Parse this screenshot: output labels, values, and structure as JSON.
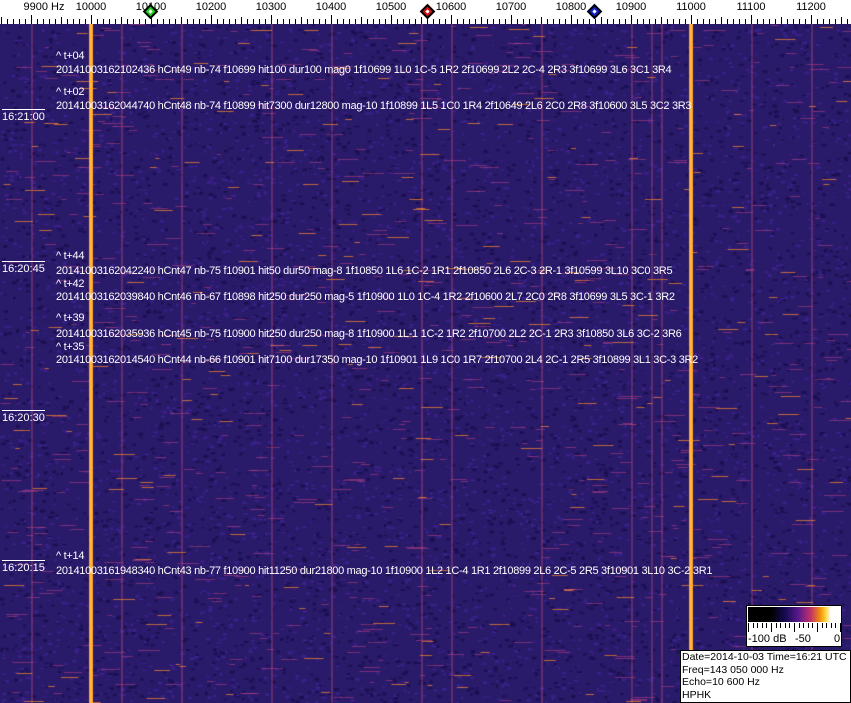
{
  "frequency_axis": {
    "unit_label": "9900 Hz",
    "labels": [
      "10000",
      "10100",
      "10200",
      "10300",
      "10400",
      "10500",
      "10600",
      "10700",
      "10800",
      "10900",
      "11000",
      "11100",
      "11200"
    ],
    "markers": [
      {
        "name": "green-marker",
        "color": "#22cc22",
        "freq_hz": 10100
      },
      {
        "name": "red-marker",
        "color": "#cc1111",
        "freq_hz": 10562
      },
      {
        "name": "blue-marker",
        "color": "#1122cc",
        "freq_hz": 10840
      }
    ]
  },
  "strong_carriers_hz": [
    10000,
    11000
  ],
  "time_labels": [
    "16:21:00",
    "16:20:45",
    "16:20:30",
    "16:20:15"
  ],
  "offsets": [
    "^ t+04",
    "^ t+02",
    "^ t+44",
    "^ t+42",
    "^ t+39",
    "^ t+35",
    "^ t+14"
  ],
  "detections": [
    "20141003162102436 hCnt49 nb-74 f10699 hit100 dur100 mag0 1f10699 1L0 1C-5 1R2 2f10699 2L2 2C-4 2R3 3f10699 3L6 3C1 3R4",
    "20141003162044740 hCnt48 nb-74 f10899 hit7300 dur12800 mag-10 1f10899 1L5 1C0 1R4 2f10649 2L6 2C0 2R8 3f10600 3L5 3C2 3R3",
    "20141003162042240 hCnt47 nb-75 f10901 hit50 dur50 mag-8 1f10850 1L6 1C-2 1R1 2f10850 2L6 2C-3 2R-1 3f10599 3L10 3C0 3R5",
    "20141003162039840 hCnt46 nb-67 f10898 hit250 dur250 mag-5 1f10900 1L0 1C-4 1R2 2f10600 2L7 2C0 2R8 3f10699 3L5 3C-1 3R2",
    "20141003162035936 hCnt45 nb-75 f10900 hit250 dur250 mag-8 1f10900 1L-1 1C-2 1R2 2f10700 2L2 2C-1 2R3 3f10850 3L6 3C-2 3R6",
    "20141003162014540 hCnt44 nb-66 f10901 hit7100 dur17350 mag-10 1f10901 1L9 1C0 1R7 2f10700 2L4 2C-1 2R5 3f10899 3L1 3C-3 3R2",
    "20141003161948340 hCnt43 nb-77 f10900 hit11250 dur21800 mag-10 1f10900 1L2 1C-4 1R1 2f10899 2L6 2C-5 2R5 3f10901 3L10 3C-2 3R1"
  ],
  "colorbar": {
    "labels": [
      "-100 dB",
      "-50",
      "0"
    ]
  },
  "info": {
    "date_time": "Date=2014-10-03 Time=16:21 UTC",
    "freq": "Freq=143 050 000 Hz",
    "echo": "Echo=10 600 Hz",
    "station": "HPHK"
  },
  "colors": {
    "background": "#2a1a6a",
    "carrier": "#ffa020"
  }
}
